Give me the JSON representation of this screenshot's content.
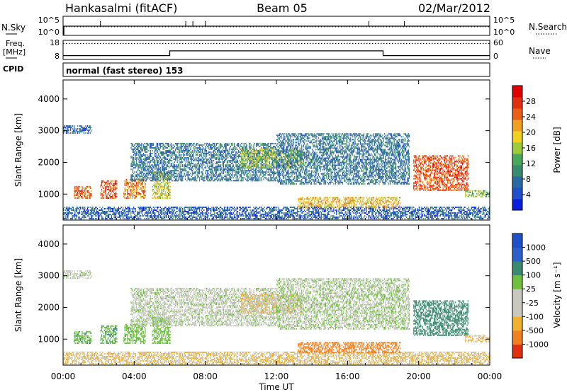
{
  "header": {
    "station": "Hankasalmi (fitACF)",
    "beam": "Beam 05",
    "date": "02/Mar/2012"
  },
  "noise_panel": {
    "left_label": "N.Sky",
    "left_ticks": [
      "10^5",
      "10^0"
    ],
    "right_label": "N.Search",
    "right_ticks": [
      "10^5",
      "10^0"
    ]
  },
  "freq_panel": {
    "left_label_1": "Freq.",
    "left_label_2": "[MHz]",
    "left_ticks": [
      "18",
      "8"
    ],
    "right_label": "Nave",
    "right_ticks": [
      "60",
      "0"
    ]
  },
  "cpid": {
    "label": "CPID",
    "value": "normal (fast stereo) 153"
  },
  "power_panel": {
    "ylabel": "Slant Range [km]",
    "colorbar_label": "Power [dB]",
    "colorbar_ticks": [
      "28",
      "24",
      "20",
      "16",
      "12",
      "8",
      "4"
    ]
  },
  "velocity_panel": {
    "ylabel": "Slant Range [km]",
    "colorbar_label": "Velocity [m s⁻¹]",
    "colorbar_ticks": [
      "1000",
      "500",
      "100",
      "25",
      "-25",
      "-100",
      "-500",
      "-1000"
    ]
  },
  "xaxis": {
    "label": "Time UT",
    "ticks": [
      "00:00",
      "04:00",
      "08:00",
      "12:00",
      "16:00",
      "20:00",
      "00:00"
    ]
  },
  "chart_data": {
    "type": "heatmap",
    "x_unit": "hours UT",
    "xlim": [
      0,
      24
    ],
    "y_unit": "km",
    "ylim": [
      180,
      4600
    ],
    "y_ticks": [
      1000,
      2000,
      3000,
      4000
    ],
    "power_scale": {
      "min": 0,
      "max": 32,
      "unit": "dB"
    },
    "velocity_scale": {
      "min": -1000,
      "max": 1000,
      "unit": "m s^-1"
    },
    "frequency_series": [
      {
        "from": 0,
        "to": 6,
        "value": 10
      },
      {
        "from": 6,
        "to": 18,
        "value": 12.5
      },
      {
        "from": 18,
        "to": 24,
        "value": 10
      }
    ],
    "nave_dotted_level": 50,
    "noise_baseline": 0.9,
    "noise_spikes_hours": [
      2.1,
      6.9,
      7.3,
      8.0,
      17.2,
      19.2
    ],
    "scatter_regions": [
      {
        "name": "near-range band",
        "t0": 0.0,
        "t1": 24.0,
        "r0": 200,
        "r1": 600,
        "power": 6,
        "velocity": -30
      },
      {
        "name": "early far echoes",
        "t0": 0.0,
        "t1": 1.6,
        "r0": 2900,
        "r1": 3150,
        "power": 6,
        "velocity": 10
      },
      {
        "name": "morning patches 1",
        "t0": 0.6,
        "t1": 1.6,
        "r0": 850,
        "r1": 1250,
        "power": 26,
        "velocity": 80
      },
      {
        "name": "morning patches 2",
        "t0": 2.1,
        "t1": 3.0,
        "r0": 850,
        "r1": 1400,
        "power": 26,
        "velocity": 90
      },
      {
        "name": "morning patches 3",
        "t0": 3.4,
        "t1": 4.6,
        "r0": 850,
        "r1": 1450,
        "power": 24,
        "velocity": 70
      },
      {
        "name": "morning patches 4",
        "t0": 5.0,
        "t1": 6.0,
        "r0": 850,
        "r1": 1700,
        "power": 18,
        "velocity": 60
      },
      {
        "name": "descending trail",
        "t0": 3.8,
        "t1": 12.0,
        "r0": 1400,
        "r1": 2600,
        "power": 8,
        "velocity": 10
      },
      {
        "name": "noon patch",
        "t0": 10.0,
        "t1": 13.5,
        "r0": 1800,
        "r1": 2400,
        "power": 16,
        "velocity": -20
      },
      {
        "name": "afternoon trail",
        "t0": 12.0,
        "t1": 19.5,
        "r0": 1300,
        "r1": 2900,
        "power": 8,
        "velocity": 20
      },
      {
        "name": "afternoon low echoes",
        "t0": 13.2,
        "t1": 19.0,
        "r0": 550,
        "r1": 900,
        "power": 20,
        "velocity": -200
      },
      {
        "name": "evening patch",
        "t0": 19.7,
        "t1": 22.8,
        "r0": 1100,
        "r1": 2200,
        "power": 26,
        "velocity": 300
      },
      {
        "name": "late echoes",
        "t0": 22.6,
        "t1": 24.0,
        "r0": 900,
        "r1": 1100,
        "power": 14,
        "velocity": -25
      }
    ]
  }
}
